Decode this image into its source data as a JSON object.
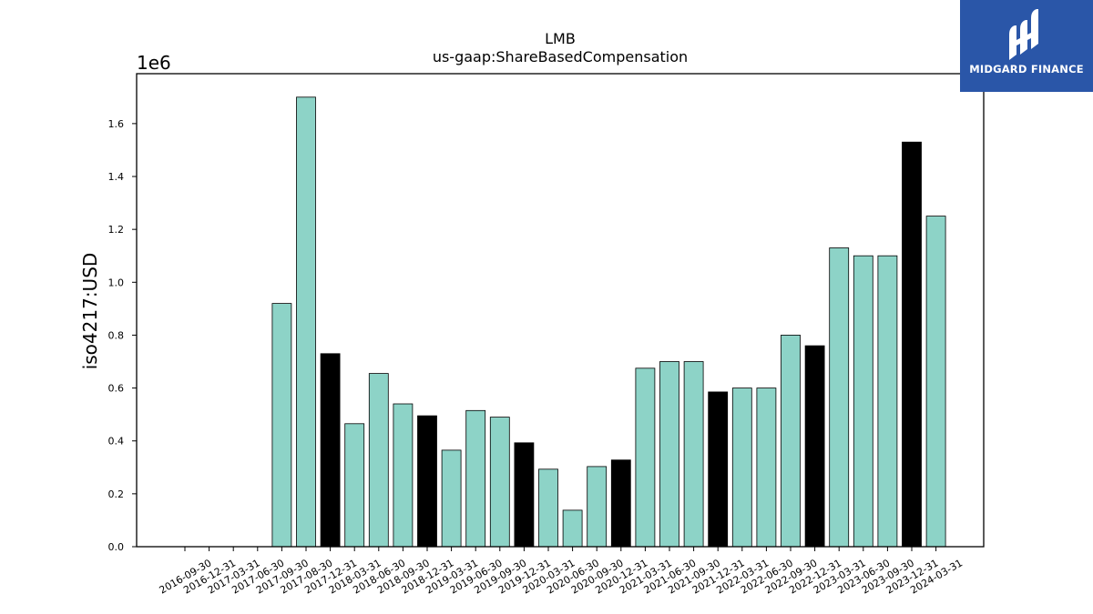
{
  "chart_data": {
    "type": "bar",
    "title": "LMB",
    "subtitle": "us-gaap:ShareBasedCompensation",
    "ylabel": "iso4217:USD",
    "xlabel": "",
    "y_multiplier_label": "1e6",
    "ylim": [
      0,
      1.78
    ],
    "yticks": [
      "0.0",
      "0.2",
      "0.4",
      "0.6",
      "0.8",
      "1.0",
      "1.2",
      "1.4",
      "1.6"
    ],
    "categories": [
      "2016-09-30",
      "2016-12-31",
      "2017-03-31",
      "2017-06-30",
      "2017-09-30",
      "2017-08-30",
      "2017-12-31",
      "2018-03-31",
      "2018-06-30",
      "2018-09-30",
      "2018-12-31",
      "2019-03-31",
      "2019-06-30",
      "2019-09-30",
      "2019-12-31",
      "2020-03-31",
      "2020-06-30",
      "2020-09-30",
      "2020-12-31",
      "2021-03-31",
      "2021-06-30",
      "2021-09-30",
      "2021-12-31",
      "2022-03-31",
      "2022-06-30",
      "2022-09-30",
      "2022-12-31",
      "2023-03-31",
      "2023-06-30",
      "2023-09-30",
      "2023-12-31",
      "2024-03-31"
    ],
    "bars": [
      {
        "x": 4,
        "value": 0.92,
        "highlight": false
      },
      {
        "x": 5,
        "value": 1.7,
        "highlight": false
      },
      {
        "x": 6,
        "value": 0.73,
        "highlight": true
      },
      {
        "x": 7,
        "value": 0.465,
        "highlight": false
      },
      {
        "x": 8,
        "value": 0.655,
        "highlight": false
      },
      {
        "x": 9,
        "value": 0.54,
        "highlight": false
      },
      {
        "x": 10,
        "value": 0.495,
        "highlight": true
      },
      {
        "x": 11,
        "value": 0.365,
        "highlight": false
      },
      {
        "x": 12,
        "value": 0.515,
        "highlight": false
      },
      {
        "x": 13,
        "value": 0.49,
        "highlight": false
      },
      {
        "x": 14,
        "value": 0.393,
        "highlight": true
      },
      {
        "x": 15,
        "value": 0.293,
        "highlight": false
      },
      {
        "x": 16,
        "value": 0.138,
        "highlight": false
      },
      {
        "x": 17,
        "value": 0.303,
        "highlight": false
      },
      {
        "x": 18,
        "value": 0.328,
        "highlight": true
      },
      {
        "x": 19,
        "value": 0.675,
        "highlight": false
      },
      {
        "x": 20,
        "value": 0.7,
        "highlight": false
      },
      {
        "x": 21,
        "value": 0.7,
        "highlight": false
      },
      {
        "x": 22,
        "value": 0.585,
        "highlight": true
      },
      {
        "x": 23,
        "value": 0.6,
        "highlight": false
      },
      {
        "x": 24,
        "value": 0.6,
        "highlight": false
      },
      {
        "x": 25,
        "value": 0.8,
        "highlight": false
      },
      {
        "x": 26,
        "value": 0.76,
        "highlight": true
      },
      {
        "x": 27,
        "value": 1.13,
        "highlight": false
      },
      {
        "x": 28,
        "value": 1.1,
        "highlight": false
      },
      {
        "x": 29,
        "value": 1.1,
        "highlight": false
      },
      {
        "x": 30,
        "value": 1.53,
        "highlight": true
      },
      {
        "x": 31,
        "value": 1.25,
        "highlight": false
      }
    ],
    "colors": {
      "bar": "#8dd3c7",
      "highlight": "#000000",
      "edge": "#000000"
    },
    "grid": false,
    "legend": "none"
  },
  "logo": {
    "text": "MIDGARD FINANCE",
    "background": "#2a56a8"
  }
}
